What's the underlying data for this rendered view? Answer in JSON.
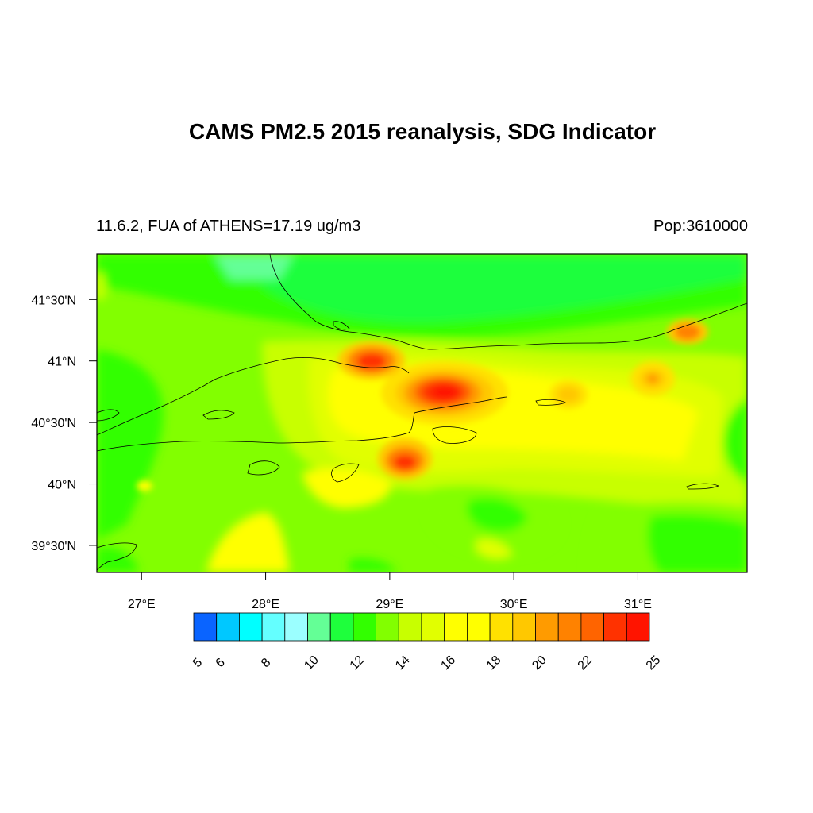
{
  "title": "CAMS PM2.5 2015 reanalysis, SDG Indicator",
  "subtitle_left": "11.6.2, FUA of ATHENS=17.19 ug/m3",
  "subtitle_right": "Pop:3610000",
  "map": {
    "lon_range": [
      26.64,
      31.88
    ],
    "lat_range": [
      39.28,
      41.87
    ],
    "x_ticks": [
      {
        "value": 27,
        "label": "27°E"
      },
      {
        "value": 28,
        "label": "28°E"
      },
      {
        "value": 29,
        "label": "29°E"
      },
      {
        "value": 30,
        "label": "30°E"
      },
      {
        "value": 31,
        "label": "31°E"
      }
    ],
    "y_ticks": [
      {
        "value": 41.5,
        "label": "41°30'N"
      },
      {
        "value": 41.0,
        "label": "41°N"
      },
      {
        "value": 40.5,
        "label": "40°30'N"
      },
      {
        "value": 40.0,
        "label": "40°N"
      },
      {
        "value": 39.5,
        "label": "39°30'N"
      }
    ],
    "hotspots": [
      {
        "lon": 29.45,
        "lat": 40.78,
        "value": 25
      },
      {
        "lon": 28.85,
        "lat": 41.05,
        "value": 23
      },
      {
        "lon": 29.1,
        "lat": 40.25,
        "value": 23
      },
      {
        "lon": 31.45,
        "lat": 41.3,
        "value": 22
      },
      {
        "lon": 31.1,
        "lat": 40.9,
        "value": 20
      },
      {
        "lon": 30.45,
        "lat": 40.75,
        "value": 19
      },
      {
        "lon": 29.8,
        "lat": 40.6,
        "value": 17
      }
    ]
  },
  "colorbar": {
    "levels": [
      5,
      6,
      7,
      8,
      9,
      10,
      11,
      12,
      13,
      14,
      15,
      16,
      17,
      18,
      19,
      20,
      21,
      22,
      23,
      24,
      25
    ],
    "colors": [
      "#0a64ff",
      "#00c8ff",
      "#00ffff",
      "#64ffff",
      "#9bffff",
      "#64ff96",
      "#1eff3c",
      "#32ff00",
      "#82ff00",
      "#c8ff00",
      "#e1ff00",
      "#ffff00",
      "#ffff00",
      "#ffe100",
      "#ffc800",
      "#ff9b00",
      "#ff8200",
      "#ff6400",
      "#ff3200",
      "#ff1400"
    ],
    "tick_labels": [
      {
        "value": 5,
        "label": "5"
      },
      {
        "value": 6,
        "label": "6"
      },
      {
        "value": 8,
        "label": "8"
      },
      {
        "value": 10,
        "label": "10"
      },
      {
        "value": 12,
        "label": "12"
      },
      {
        "value": 14,
        "label": "14"
      },
      {
        "value": 16,
        "label": "16"
      },
      {
        "value": 18,
        "label": "18"
      },
      {
        "value": 20,
        "label": "20"
      },
      {
        "value": 22,
        "label": "22"
      },
      {
        "value": 25,
        "label": "25"
      }
    ]
  }
}
